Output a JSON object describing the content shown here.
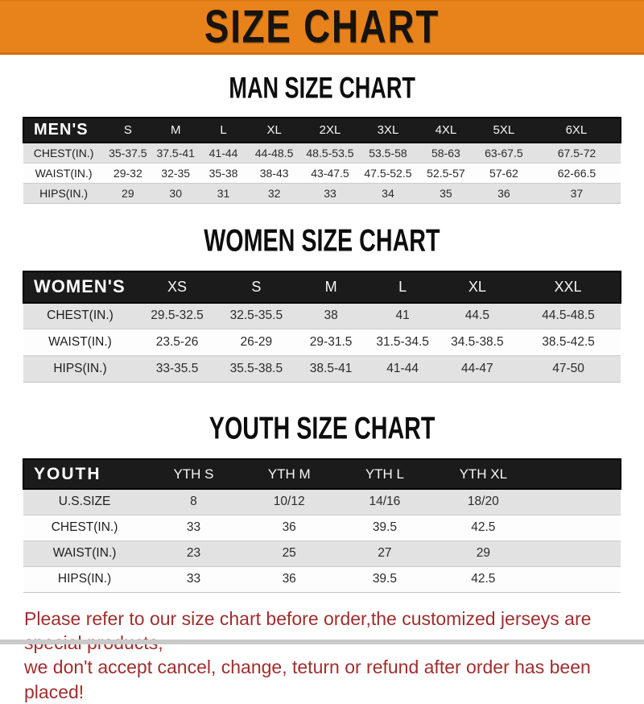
{
  "banner": {
    "title": "SIZE CHART"
  },
  "sections": [
    {
      "heading": "MAN SIZE CHART",
      "corner_label": "MEN'S",
      "columns": [
        "S",
        "M",
        "L",
        "XL",
        "2XL",
        "3XL",
        "4XL",
        "5XL",
        "6XL"
      ],
      "rows": [
        {
          "label": "CHEST(IN.)",
          "values": [
            "35-37.5",
            "37.5-41",
            "41-44",
            "44-48.5",
            "48.5-53.5",
            "53.5-58",
            "58-63",
            "63-67.5",
            "67.5-72"
          ]
        },
        {
          "label": "WAIST(IN.)",
          "values": [
            "29-32",
            "32-35",
            "35-38",
            "38-43",
            "43-47.5",
            "47.5-52.5",
            "52.5-57",
            "57-62",
            "62-66.5"
          ]
        },
        {
          "label": "HIPS(IN.)",
          "values": [
            "29",
            "30",
            "31",
            "32",
            "33",
            "34",
            "35",
            "36",
            "37"
          ]
        }
      ]
    },
    {
      "heading": "WOMEN SIZE CHART",
      "corner_label": "WOMEN'S",
      "columns": [
        "XS",
        "S",
        "M",
        "L",
        "XL",
        "XXL"
      ],
      "rows": [
        {
          "label": "CHEST(IN.)",
          "values": [
            "29.5-32.5",
            "32.5-35.5",
            "38",
            "41",
            "44.5",
            "44.5-48.5"
          ]
        },
        {
          "label": "WAIST(IN.)",
          "values": [
            "23.5-26",
            "26-29",
            "29-31.5",
            "31.5-34.5",
            "34.5-38.5",
            "38.5-42.5"
          ]
        },
        {
          "label": "HIPS(IN.)",
          "values": [
            "33-35.5",
            "35.5-38.5",
            "38.5-41",
            "41-44",
            "44-47",
            "47-50"
          ]
        }
      ]
    },
    {
      "heading": "YOUTH SIZE CHART",
      "corner_label": "YOUTH",
      "columns": [
        "YTH S",
        "YTH M",
        "YTH L",
        "YTH XL"
      ],
      "rows": [
        {
          "label": "U.S.SIZE",
          "values": [
            "8",
            "10/12",
            "14/16",
            "18/20"
          ]
        },
        {
          "label": "CHEST(IN.)",
          "values": [
            "33",
            "36",
            "39.5",
            "42.5"
          ]
        },
        {
          "label": "WAIST(IN.)",
          "values": [
            "23",
            "25",
            "27",
            "29"
          ]
        },
        {
          "label": "HIPS(IN.)",
          "values": [
            "33",
            "36",
            "39.5",
            "42.5"
          ]
        }
      ]
    }
  ],
  "footer": {
    "line1": "Please refer to our size chart before order,the customized jerseys are special products,",
    "line2": "we don't accept cancel, change, teturn or refund after order has been placed!"
  },
  "colors": {
    "banner_orange": "#e8821a",
    "header_bar_black": "#1b1b1b",
    "row_gray": "#e2e2e2",
    "row_white": "#fdfdfd",
    "footer_red": "#a02e2e"
  }
}
